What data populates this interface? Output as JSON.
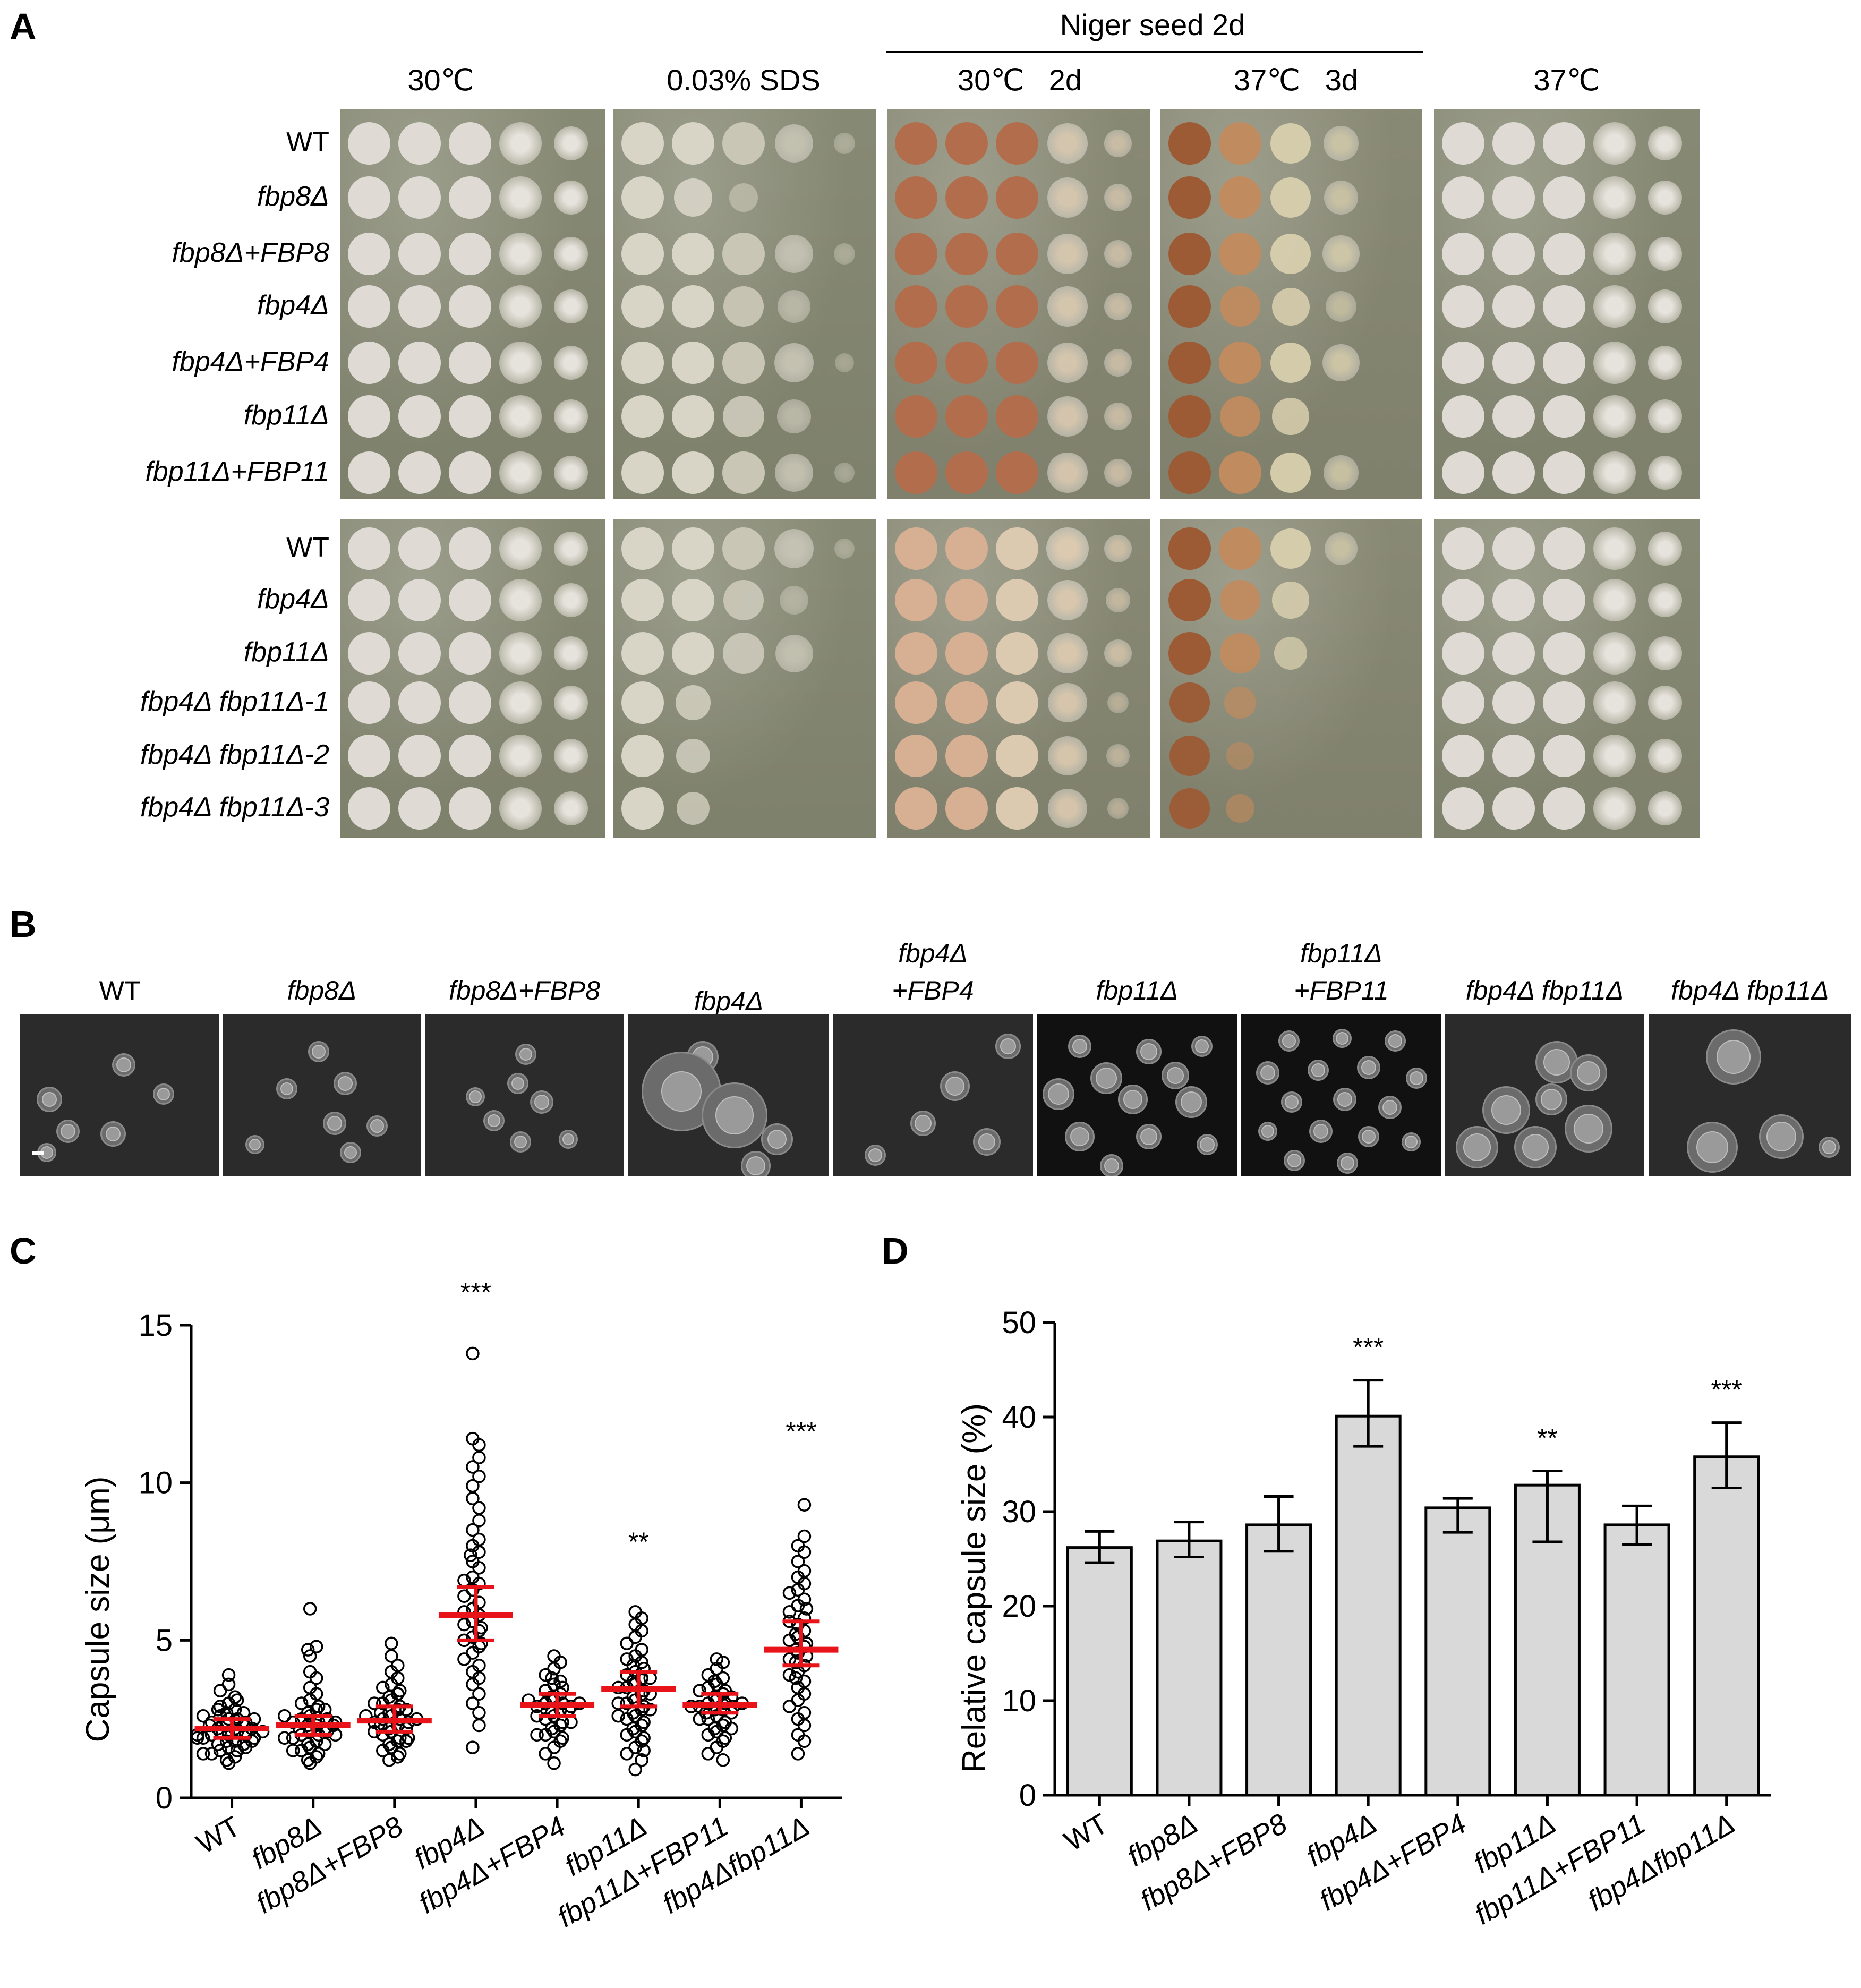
{
  "panel_A": {
    "letter": "A",
    "headers": {
      "col1": "30℃",
      "col2": "0.03% SDS",
      "niger_group": "Niger seed 2d",
      "col3": "30℃   2d",
      "col4": "37℃   3d",
      "col5": "37℃"
    },
    "rows_top": [
      "WT",
      "fbp8Δ",
      "fbp8Δ+FBP8",
      "fbp4Δ",
      "fbp4Δ+FBP4",
      "fbp11Δ",
      "fbp11Δ+FBP11"
    ],
    "rows_bottom": [
      "WT",
      "fbp4Δ",
      "fbp11Δ",
      "fbp4Δ fbp11Δ-1",
      "fbp4Δ fbp11Δ-2",
      "fbp4Δ fbp11Δ-3"
    ]
  },
  "panel_B": {
    "letter": "B",
    "labels": [
      "WT",
      "fbp8Δ",
      "fbp8Δ+FBP8",
      "fbp4Δ",
      "fbp4Δ\n+FBP4",
      "fbp11Δ",
      "fbp11Δ\n+FBP11",
      "fbp4Δ fbp11Δ",
      "fbp4Δ fbp11Δ"
    ]
  },
  "panel_C": {
    "letter": "C",
    "chart_data": {
      "type": "scatter",
      "ylabel": "Capsule size (μm)",
      "ylim": [
        0,
        15
      ],
      "yticks": [
        0,
        5,
        10,
        15
      ],
      "categories": [
        "WT",
        "fbp8Δ",
        "fbp8Δ+FBP8",
        "fbp4Δ",
        "fbp4Δ+FBP4",
        "fbp11Δ",
        "fbp11Δ+FBP11",
        "fbp4Δfbp11Δ"
      ],
      "medians": [
        2.2,
        2.3,
        2.45,
        5.8,
        2.95,
        3.45,
        2.95,
        4.7
      ],
      "iqr": [
        [
          1.9,
          2.5
        ],
        [
          2.0,
          2.6
        ],
        [
          2.1,
          2.9
        ],
        [
          5.0,
          6.7
        ],
        [
          2.6,
          3.3
        ],
        [
          2.9,
          4.0
        ],
        [
          2.7,
          3.3
        ],
        [
          4.2,
          5.6
        ]
      ],
      "significance": [
        "",
        "",
        "",
        "***",
        "",
        "**",
        "",
        "***"
      ],
      "points": [
        [
          2.2,
          2.5,
          1.8,
          2.0,
          3.9,
          3.6,
          3.4,
          3.2,
          3.0,
          2.9,
          2.8,
          2.7,
          2.6,
          2.5,
          2.4,
          2.3,
          2.3,
          2.2,
          2.1,
          2.1,
          2.0,
          2.0,
          1.9,
          1.9,
          1.8,
          1.7,
          1.7,
          1.6,
          1.5,
          1.5,
          1.4,
          1.3,
          1.2,
          2.4,
          2.6,
          2.2,
          1.9,
          2.1,
          2.3,
          1.6,
          1.8,
          2.0,
          2.5,
          2.7,
          1.4,
          1.1,
          3.1,
          2.8
        ],
        [
          6.0,
          4.8,
          4.7,
          4.5,
          4.0,
          3.8,
          3.5,
          3.3,
          3.1,
          3.0,
          2.9,
          2.8,
          2.7,
          2.6,
          2.5,
          2.4,
          2.4,
          2.3,
          2.3,
          2.2,
          2.1,
          2.0,
          2.0,
          1.9,
          1.8,
          1.7,
          1.6,
          1.5,
          1.4,
          1.3,
          1.2,
          1.1,
          2.2,
          2.5,
          2.1,
          1.9,
          2.6,
          2.8,
          1.7,
          2.3,
          2.0,
          2.4,
          1.5
        ],
        [
          4.9,
          4.5,
          4.2,
          4.0,
          3.8,
          3.6,
          3.5,
          3.3,
          3.2,
          3.1,
          3.0,
          2.9,
          2.8,
          2.7,
          2.6,
          2.5,
          2.5,
          2.4,
          2.4,
          2.3,
          2.2,
          2.2,
          2.1,
          2.0,
          1.9,
          1.8,
          1.7,
          1.6,
          1.5,
          1.4,
          1.3,
          1.2,
          2.6,
          2.3,
          2.1,
          2.8,
          3.0,
          1.9,
          2.5,
          2.7,
          3.4,
          1.8
        ],
        [
          14.1,
          11.4,
          11.2,
          10.8,
          10.5,
          10.2,
          9.9,
          9.5,
          9.2,
          8.8,
          8.5,
          8.2,
          8.0,
          7.8,
          7.5,
          7.3,
          7.0,
          6.8,
          6.6,
          6.4,
          6.2,
          6.0,
          5.9,
          5.8,
          5.6,
          5.5,
          5.3,
          5.1,
          5.0,
          4.8,
          4.6,
          4.4,
          4.2,
          4.0,
          3.8,
          3.6,
          3.3,
          3.0,
          2.7,
          2.3,
          1.6,
          6.9,
          7.7,
          5.4,
          4.9
        ],
        [
          4.5,
          4.3,
          4.1,
          3.9,
          3.7,
          3.6,
          3.4,
          3.3,
          3.2,
          3.1,
          3.0,
          3.0,
          2.9,
          2.9,
          2.8,
          2.7,
          2.6,
          2.5,
          2.4,
          2.3,
          2.2,
          2.1,
          2.0,
          1.9,
          1.8,
          1.6,
          1.4,
          1.1,
          3.5,
          3.1,
          2.8,
          2.6,
          3.0,
          2.4,
          3.8,
          2.0
        ],
        [
          5.9,
          5.7,
          5.5,
          5.3,
          5.1,
          4.9,
          4.7,
          4.5,
          4.3,
          4.2,
          4.0,
          3.9,
          3.8,
          3.7,
          3.6,
          3.5,
          3.4,
          3.3,
          3.2,
          3.1,
          3.0,
          2.9,
          2.8,
          2.7,
          2.6,
          2.5,
          2.4,
          2.3,
          2.2,
          2.1,
          2.0,
          1.9,
          1.8,
          1.6,
          1.4,
          1.2,
          0.9,
          3.5,
          3.8,
          3.0,
          4.1,
          2.6,
          3.3,
          4.4,
          2.8,
          1.5
        ],
        [
          4.4,
          4.3,
          4.1,
          3.9,
          3.8,
          3.6,
          3.5,
          3.4,
          3.3,
          3.2,
          3.1,
          3.0,
          3.0,
          2.9,
          2.9,
          2.8,
          2.8,
          2.7,
          2.6,
          2.5,
          2.4,
          2.3,
          2.2,
          2.1,
          2.0,
          1.9,
          1.8,
          1.6,
          1.4,
          1.2,
          3.2,
          2.9,
          3.0,
          2.7,
          3.4,
          2.5,
          2.2,
          3.7
        ],
        [
          9.3,
          8.3,
          8.0,
          7.8,
          7.5,
          7.2,
          7.0,
          6.8,
          6.6,
          6.3,
          6.1,
          5.9,
          5.7,
          5.5,
          5.3,
          5.1,
          5.0,
          4.8,
          4.7,
          4.6,
          4.4,
          4.2,
          4.0,
          3.9,
          3.7,
          3.5,
          3.3,
          3.1,
          2.9,
          2.7,
          2.5,
          2.3,
          2.0,
          1.8,
          1.4,
          4.9,
          5.6,
          4.5,
          6.0,
          3.8,
          4.3,
          5.2,
          6.5
        ]
      ]
    }
  },
  "panel_D": {
    "letter": "D",
    "chart_data": {
      "type": "bar",
      "ylabel": "Relative capsule size (%)",
      "ylim": [
        0,
        50
      ],
      "yticks": [
        0,
        10,
        20,
        30,
        40,
        50
      ],
      "categories": [
        "WT",
        "fbp8Δ",
        "fbp8Δ+FBP8",
        "fbp4Δ",
        "fbp4Δ+FBP4",
        "fbp11Δ",
        "fbp11Δ+FBP11",
        "fbp4Δfbp11Δ"
      ],
      "values": [
        26.2,
        26.9,
        28.6,
        40.1,
        30.4,
        32.8,
        28.6,
        35.8
      ],
      "err_low": [
        24.6,
        25.2,
        25.8,
        36.9,
        27.8,
        26.8,
        26.5,
        32.5
      ],
      "err_high": [
        27.9,
        28.9,
        31.6,
        43.9,
        31.4,
        34.3,
        30.6,
        39.4
      ],
      "significance": [
        "",
        "",
        "",
        "***",
        "",
        "**",
        "",
        "***"
      ]
    }
  }
}
